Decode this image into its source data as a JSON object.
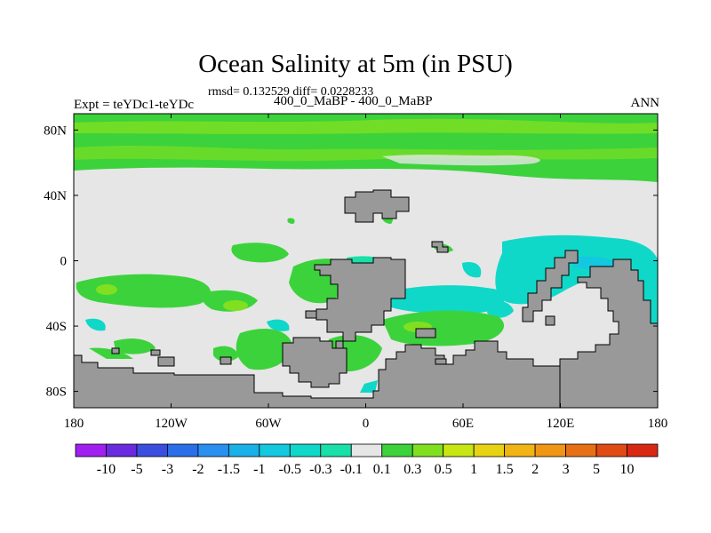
{
  "title": "Ocean Salinity at 5m (in PSU)",
  "stats": "rmsd= 0.132529 diff= 0.0228233",
  "left_label": "Expt = teYDc1-teYDc",
  "center_label": "400_0_MaBP - 400_0_MaBP",
  "right_label": "ANN",
  "chart_data": {
    "type": "heatmap",
    "xlim": [
      -180,
      180
    ],
    "ylim": [
      -90,
      90
    ],
    "x_ticks": [
      {
        "value": -180,
        "label": "180"
      },
      {
        "value": -120,
        "label": "120W"
      },
      {
        "value": -60,
        "label": "60W"
      },
      {
        "value": 0,
        "label": "0"
      },
      {
        "value": 60,
        "label": "60E"
      },
      {
        "value": 120,
        "label": "120E"
      },
      {
        "value": 180,
        "label": "180"
      }
    ],
    "y_ticks": [
      {
        "value": 80,
        "label": "80N"
      },
      {
        "value": 40,
        "label": "40N"
      },
      {
        "value": 0,
        "label": "0"
      },
      {
        "value": -40,
        "label": "40S"
      },
      {
        "value": -80,
        "label": "80S"
      }
    ],
    "colorbar": {
      "labels": [
        "-10",
        "-5",
        "-3",
        "-2",
        "-1.5",
        "-1",
        "-0.5",
        "-0.3",
        "-0.1",
        "0.1",
        "0.3",
        "0.5",
        "1",
        "1.5",
        "2",
        "3",
        "5",
        "10"
      ],
      "colors": [
        "#a020f0",
        "#6a2ae0",
        "#3a4ee0",
        "#2a6ee8",
        "#2a90f0",
        "#1ab0e8",
        "#14c8e0",
        "#10d8c8",
        "#18e0a8",
        "#e6e6e6",
        "#3cd23c",
        "#80e020",
        "#c8e614",
        "#e8d214",
        "#f0b414",
        "#f09614",
        "#e87014",
        "#e04a14",
        "#d82814"
      ]
    },
    "land_color": "#999999",
    "ocean_base_color": "#e6e6e6",
    "regions": [
      {
        "level": "0.1 to 0.3",
        "lon": [
          -180,
          180
        ],
        "lat": [
          60,
          90
        ],
        "description": "Arctic band"
      },
      {
        "level": "0.1 to 0.3",
        "lon": [
          -180,
          180
        ],
        "lat": [
          45,
          60
        ]
      },
      {
        "level": "-0.3 to -0.1",
        "lon": [
          -25,
          160
        ],
        "lat": [
          -20,
          10
        ]
      },
      {
        "level": "0.1 to 0.3",
        "lon": [
          -180,
          -100
        ],
        "lat": [
          -40,
          -20
        ]
      },
      {
        "level": "0.1 to 0.3",
        "lon": [
          -75,
          -5
        ],
        "lat": [
          -70,
          -30
        ]
      },
      {
        "level": "0.1 to 0.3",
        "lon": [
          10,
          100
        ],
        "lat": [
          -50,
          -30
        ]
      }
    ]
  }
}
